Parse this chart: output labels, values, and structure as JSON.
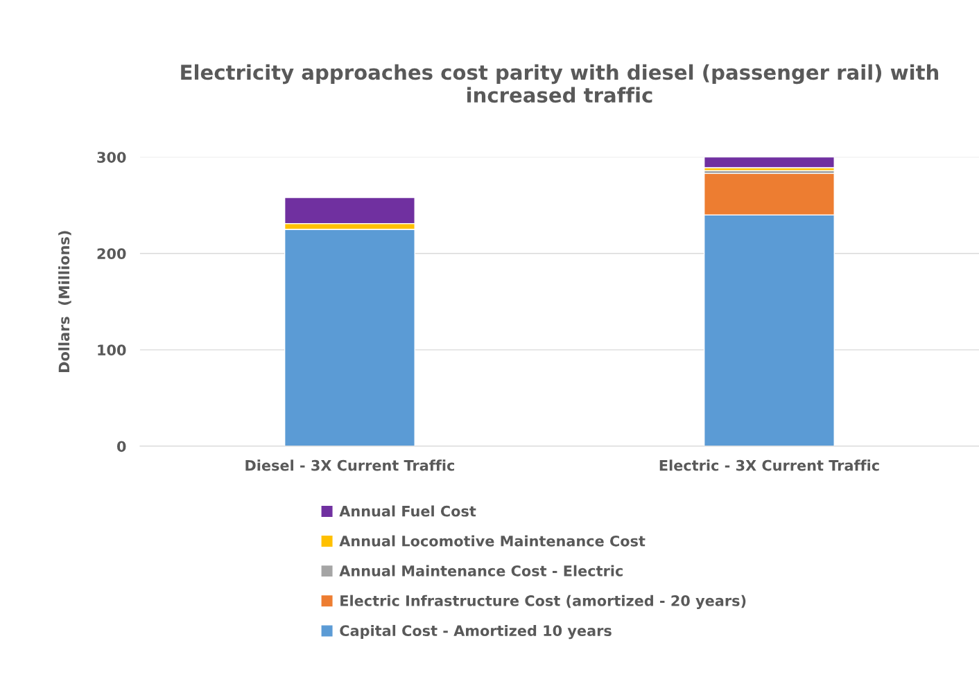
{
  "chart_data": {
    "type": "bar",
    "title": "Electricity approaches cost parity with diesel (passenger rail) with increased traffic",
    "ylabel": "Dollars  (Millions)",
    "categories": [
      "Diesel - 3X Current Traffic",
      "Electric - 3X Current Traffic"
    ],
    "stacked": true,
    "series": [
      {
        "name": "Capital Cost - Amortized 10 years",
        "color": "#5b9bd5",
        "values": [
          225,
          240
        ]
      },
      {
        "name": "Electric Infrastructure Cost (amortized - 20 years)",
        "color": "#ed7d31",
        "values": [
          0,
          43
        ]
      },
      {
        "name": "Annual Maintenance Cost - Electric",
        "color": "#a5a5a5",
        "values": [
          0,
          3
        ]
      },
      {
        "name": "Annual Locomotive Maintenance Cost",
        "color": "#ffc000",
        "values": [
          6,
          3
        ]
      },
      {
        "name": "Annual Fuel Cost",
        "color": "#7030a0",
        "values": [
          27,
          11
        ]
      }
    ],
    "ylim": [
      0,
      300
    ],
    "yticks": [
      0,
      100,
      200,
      300
    ],
    "grid": "y",
    "legend": "bottom"
  }
}
